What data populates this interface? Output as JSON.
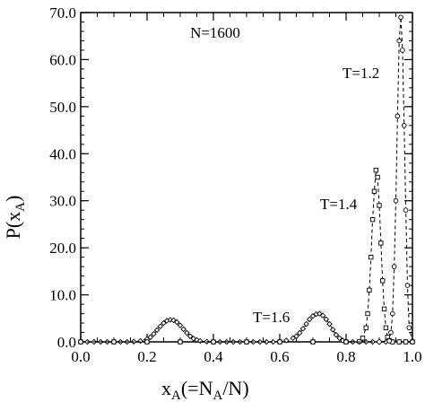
{
  "chart_data": {
    "type": "scatter",
    "annotation_top": "N=1600",
    "xlabel": {
      "main": "x",
      "sub_a": "A",
      "mid": "(=N",
      "sub_b": "A",
      "end": "/N)"
    },
    "ylabel": {
      "main": "P(x",
      "sub": "A",
      "end": ")"
    },
    "xlim": [
      0.0,
      1.0
    ],
    "ylim": [
      0.0,
      70.0
    ],
    "x_ticks": [
      "0.0",
      "0.2",
      "0.4",
      "0.6",
      "0.8",
      "1.0"
    ],
    "y_ticks": [
      "0.0",
      "10.0",
      "20.0",
      "30.0",
      "40.0",
      "50.0",
      "60.0",
      "70.0"
    ],
    "grid": false,
    "series": [
      {
        "name": "T=1.6",
        "marker": "diamond",
        "x": [
          0.0,
          0.02,
          0.04,
          0.06,
          0.08,
          0.1,
          0.12,
          0.14,
          0.16,
          0.18,
          0.2,
          0.21,
          0.22,
          0.23,
          0.24,
          0.25,
          0.26,
          0.27,
          0.28,
          0.29,
          0.3,
          0.31,
          0.32,
          0.33,
          0.34,
          0.35,
          0.36,
          0.38,
          0.4,
          0.42,
          0.44,
          0.46,
          0.48,
          0.5,
          0.52,
          0.54,
          0.56,
          0.58,
          0.6,
          0.62,
          0.64,
          0.65,
          0.66,
          0.67,
          0.68,
          0.69,
          0.7,
          0.71,
          0.72,
          0.73,
          0.74,
          0.75,
          0.76,
          0.77,
          0.78,
          0.79,
          0.8,
          0.82,
          0.84,
          0.86,
          0.88,
          0.9,
          0.92,
          0.94,
          0.96,
          0.98,
          1.0
        ],
        "y": [
          0,
          0,
          0,
          0,
          0,
          0,
          0,
          0,
          0.05,
          0.2,
          0.6,
          1.0,
          1.7,
          2.5,
          3.3,
          4.0,
          4.5,
          4.7,
          4.6,
          4.2,
          3.5,
          2.7,
          1.9,
          1.2,
          0.7,
          0.4,
          0.2,
          0.05,
          0,
          0,
          0,
          0,
          0,
          0,
          0,
          0,
          0,
          0,
          0.1,
          0.3,
          0.8,
          1.2,
          1.9,
          2.8,
          3.8,
          4.8,
          5.5,
          5.9,
          6.0,
          5.6,
          4.8,
          3.8,
          2.6,
          1.5,
          0.8,
          0.3,
          0.1,
          0,
          0,
          0,
          0,
          0,
          0,
          0,
          0,
          0,
          0
        ]
      },
      {
        "name": "T=1.4",
        "marker": "square",
        "x": [
          0.0,
          0.1,
          0.2,
          0.3,
          0.4,
          0.5,
          0.6,
          0.7,
          0.8,
          0.84,
          0.85,
          0.86,
          0.865,
          0.87,
          0.875,
          0.88,
          0.885,
          0.89,
          0.895,
          0.9,
          0.905,
          0.91,
          0.915,
          0.92,
          0.925,
          0.93,
          0.94,
          0.96,
          0.98,
          1.0
        ],
        "y": [
          0,
          0,
          0,
          0,
          0,
          0,
          0,
          0,
          0,
          0.1,
          0.8,
          3.0,
          6.0,
          11.0,
          18.0,
          26.0,
          32.0,
          36.5,
          35.0,
          29.0,
          21.0,
          13.0,
          7.0,
          3.0,
          1.0,
          0.3,
          0,
          0,
          0,
          0
        ]
      },
      {
        "name": "T=1.2",
        "marker": "circle",
        "x": [
          0.0,
          0.1,
          0.2,
          0.3,
          0.4,
          0.5,
          0.6,
          0.7,
          0.8,
          0.9,
          0.93,
          0.935,
          0.94,
          0.945,
          0.95,
          0.955,
          0.96,
          0.965,
          0.97,
          0.975,
          0.98,
          0.985,
          0.99,
          1.0
        ],
        "y": [
          0,
          0,
          0,
          0,
          0,
          0,
          0,
          0,
          0,
          0,
          0.2,
          2.0,
          6.0,
          16.0,
          30.0,
          48.0,
          64.0,
          69.0,
          62.0,
          46.0,
          28.0,
          12.0,
          3.0,
          0
        ]
      }
    ],
    "series_labels": [
      "T=1.2",
      "T=1.4",
      "T=1.6"
    ]
  }
}
